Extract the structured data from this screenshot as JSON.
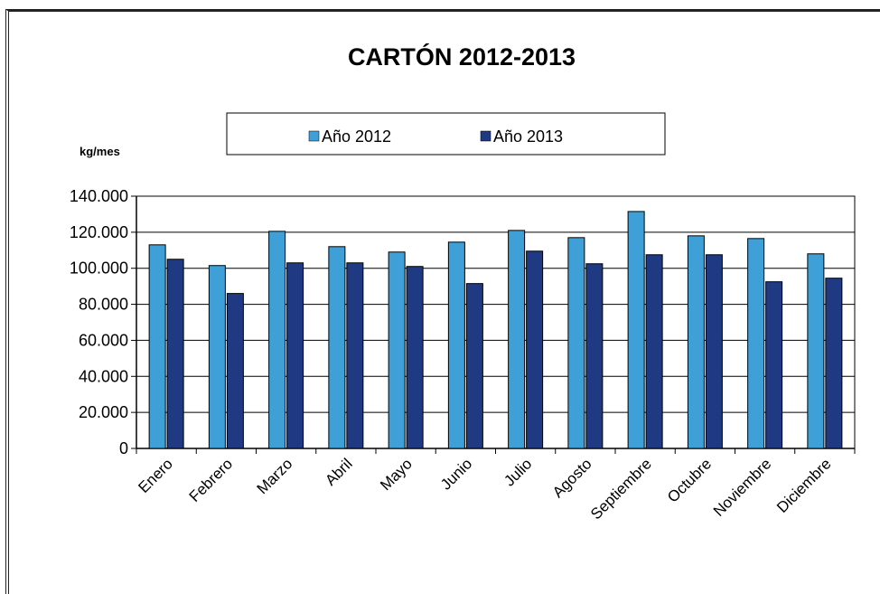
{
  "chart_data": {
    "type": "bar",
    "title": "CARTÓN 2012-2013",
    "unit_label": "kg/mes",
    "categories": [
      "Enero",
      "Febrero",
      "Marzo",
      "Abril",
      "Mayo",
      "Junio",
      "Julio",
      "Agosto",
      "Septiembre",
      "Octubre",
      "Noviembre",
      "Diciembre"
    ],
    "series": [
      {
        "name": "Año 2012",
        "color": "#3fa0d8",
        "values": [
          113000,
          101500,
          120500,
          112000,
          109000,
          114500,
          121000,
          117000,
          131500,
          118000,
          116500,
          108000
        ]
      },
      {
        "name": "Año 2013",
        "color": "#1f3a82",
        "values": [
          105000,
          86000,
          103000,
          103000,
          101000,
          91500,
          109500,
          102500,
          107500,
          107500,
          92500,
          94500
        ]
      }
    ],
    "ylim": [
      0,
      140000
    ],
    "y_ticks": [
      0,
      20000,
      40000,
      60000,
      80000,
      100000,
      120000,
      140000
    ],
    "y_tick_labels": [
      "0",
      "20.000",
      "40.000",
      "60.000",
      "80.000",
      "100.000",
      "120.000",
      "140.000"
    ],
    "grid": true,
    "legend_position": "top-center"
  }
}
